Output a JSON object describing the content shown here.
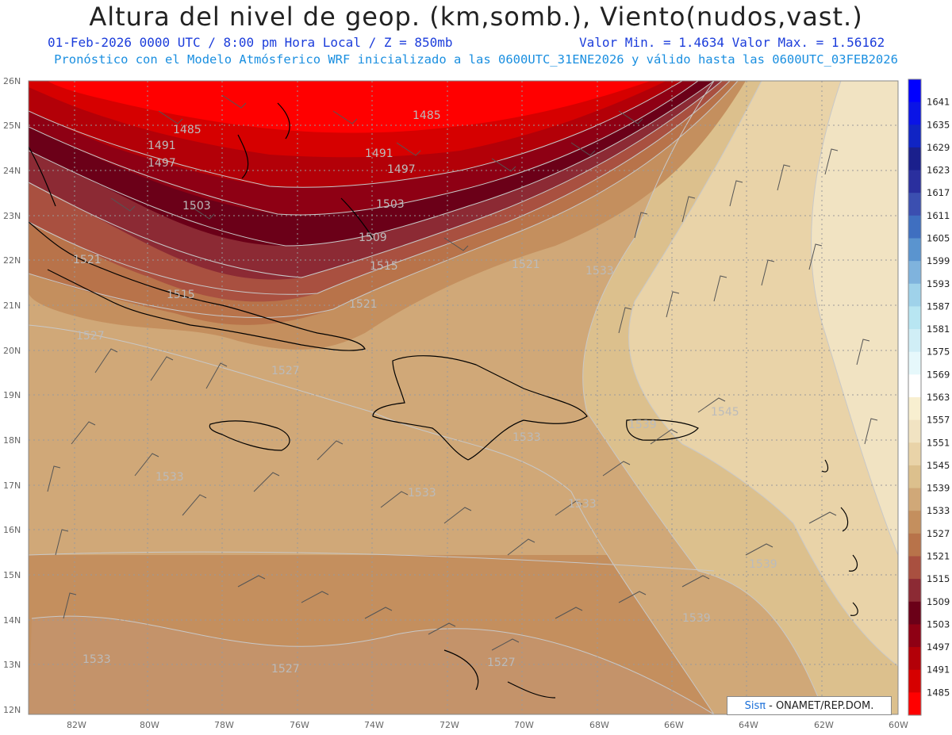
{
  "title": "Altura del nivel de geop. (km,somb.), Viento(nudos,vast.)",
  "subtitle_left": "01-Feb-2026  0000 UTC / 8:00 pm Hora Local / Z = 850mb",
  "subtitle_right": "Valor Min. = 1.4634  Valor Max. = 1.56162",
  "subtitle_line2": "Pronóstico con el Modelo Atmósferico WRF inicializado a las 0600UTC_31ENE2026 y válido hasta las  0600UTC_03FEB2026",
  "map": {
    "lat_labels": [
      "26N",
      "25N",
      "24N",
      "23N",
      "22N",
      "21N",
      "20N",
      "19N",
      "18N",
      "17N",
      "16N",
      "15N",
      "14N",
      "13N",
      "12N"
    ],
    "lon_labels": [
      "82W",
      "80W",
      "78W",
      "76W",
      "74W",
      "72W",
      "70W",
      "68W",
      "66W",
      "64W",
      "62W",
      "60W"
    ],
    "contour_labels": [
      "1485",
      "1485",
      "1491",
      "1491",
      "1497",
      "1497",
      "1503",
      "1503",
      "1509",
      "1515",
      "1515",
      "1521",
      "1521",
      "1521",
      "1527",
      "1527",
      "1527",
      "1527",
      "1533",
      "1533",
      "1533",
      "1533",
      "1533",
      "1533",
      "1539",
      "1539",
      "1539",
      "1545"
    ]
  },
  "colorbar": {
    "labels": [
      "1641",
      "1635",
      "1629",
      "1623",
      "1617",
      "1611",
      "1605",
      "1599",
      "1593",
      "1587",
      "1581",
      "1575",
      "1569",
      "1563",
      "1557",
      "1551",
      "1545",
      "1539",
      "1533",
      "1527",
      "1521",
      "1515",
      "1509",
      "1503",
      "1497",
      "1491",
      "1485"
    ],
    "colors": [
      "#0000ff",
      "#0a14e6",
      "#1024c4",
      "#1a1f8c",
      "#2a2f9e",
      "#3b4fb0",
      "#3f6fc0",
      "#5a94cf",
      "#7fb3dd",
      "#9fd2ea",
      "#b8e6f2",
      "#d0eef6",
      "#e6f8fb",
      "#ffffff",
      "#f8efd0",
      "#f1e3c2",
      "#e9d3a8",
      "#dcc08d",
      "#d0a878",
      "#c48f5e",
      "#b8734a",
      "#a95040",
      "#8c2a34",
      "#6b0018",
      "#8e0014",
      "#b30008",
      "#d60000",
      "#ff0000"
    ]
  },
  "logo": {
    "brand": "Sisπ",
    "org": "- ONAMET/REP.DOM."
  }
}
